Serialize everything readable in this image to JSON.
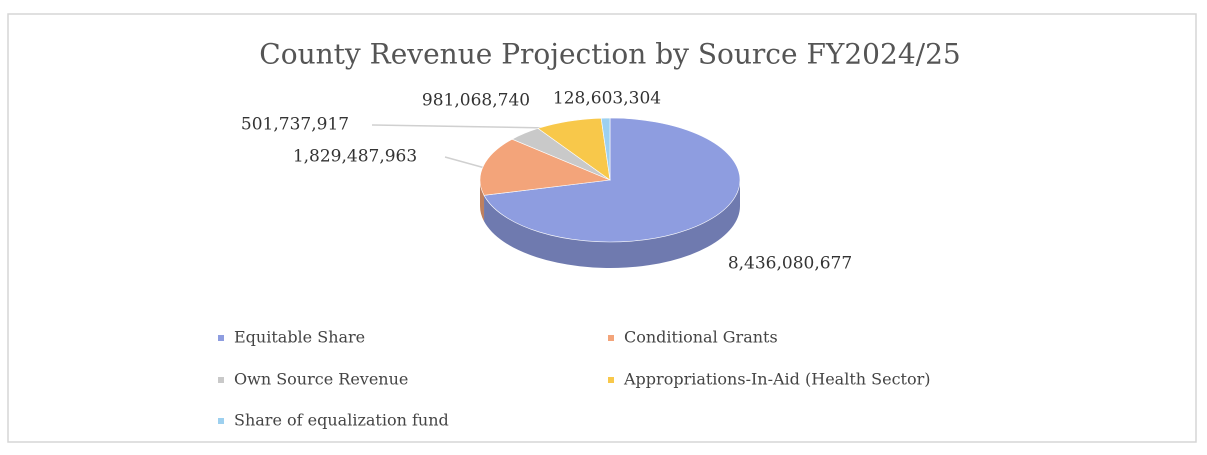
{
  "chart_data": {
    "type": "pie",
    "title": "County Revenue Projection by Source FY2024/25",
    "categories": [
      "Equitable Share",
      "Conditional Grants",
      "Own Source Revenue",
      "Appropriations-In-Aid (Health Sector)",
      "Share of equalization fund"
    ],
    "values": [
      8436080677,
      1829487963,
      501737917,
      981068740,
      128603304
    ],
    "value_labels": [
      "8,436,080,677",
      "1,829,487,963",
      "501,737,917",
      "981,068,740",
      "128,603,304"
    ],
    "colors": [
      "#8e9de0",
      "#f3a47a",
      "#c9c9c9",
      "#f8c84a",
      "#9dd0ef"
    ],
    "legend": "bottom"
  }
}
